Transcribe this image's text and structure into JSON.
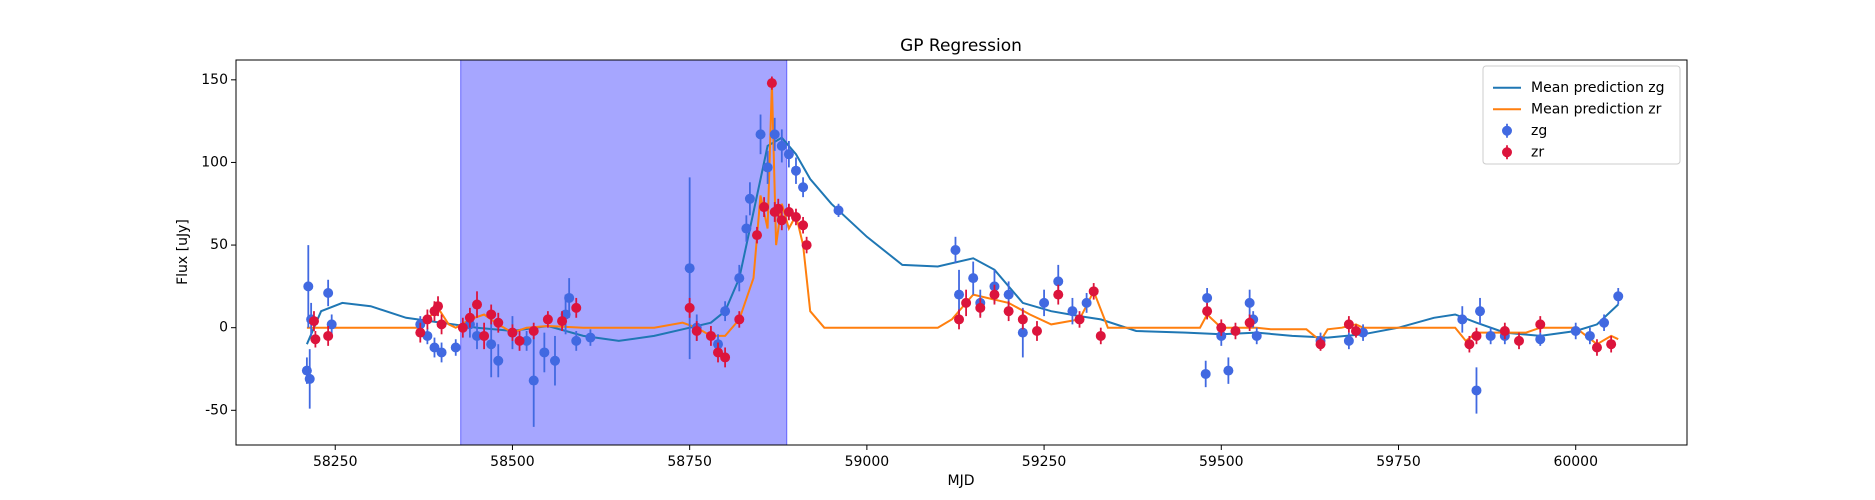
{
  "chart_data": {
    "type": "errorbar-line",
    "title": "GP Regression",
    "x_label": "MJD",
    "y_label": "Flux [uJy]",
    "xlim": [
      58110,
      60157
    ],
    "ylim": [
      -71,
      162
    ],
    "xticks": [
      58250,
      58500,
      58750,
      59000,
      59250,
      59500,
      59750,
      60000
    ],
    "yticks": [
      -50,
      0,
      50,
      100,
      150
    ],
    "grid": false,
    "legend": "upper right",
    "shaded_region": {
      "x": [
        58427,
        58887
      ],
      "color": "#0000ff"
    },
    "series": [
      {
        "name": "Mean prediction zg",
        "kind": "line",
        "color": "#1f77b4",
        "x": [
          58210,
          58230,
          58260,
          58300,
          58350,
          58400,
          58450,
          58500,
          58550,
          58600,
          58650,
          58700,
          58750,
          58780,
          58800,
          58820,
          58840,
          58860,
          58880,
          58900,
          58920,
          58950,
          59000,
          59050,
          59100,
          59150,
          59180,
          59220,
          59260,
          59300,
          59330,
          59380,
          59450,
          59500,
          59550,
          59600,
          59650,
          59700,
          59750,
          59800,
          59830,
          59860,
          59900,
          59950,
          60000,
          60030,
          60060
        ],
        "values": [
          -10,
          10,
          15,
          13,
          6,
          3,
          0,
          -2,
          1,
          -5,
          -8,
          -5,
          0,
          3,
          10,
          30,
          70,
          110,
          115,
          105,
          90,
          75,
          55,
          38,
          37,
          42,
          35,
          15,
          10,
          7,
          5,
          -2,
          -3,
          -4,
          -3,
          -5,
          -6,
          -4,
          0,
          6,
          8,
          3,
          -3,
          -5,
          -2,
          2,
          14
        ]
      },
      {
        "name": "Mean prediction zr",
        "kind": "line",
        "color": "#ff7f0e",
        "x": [
          58210,
          58230,
          58370,
          58380,
          58395,
          58410,
          58420,
          58440,
          58460,
          58480,
          58500,
          58520,
          58550,
          58600,
          58700,
          58740,
          58760,
          58780,
          58800,
          58820,
          58840,
          58850,
          58860,
          58866,
          58872,
          58880,
          58890,
          58900,
          58910,
          58920,
          58940,
          59100,
          59120,
          59150,
          59200,
          59230,
          59260,
          59300,
          59320,
          59340,
          59470,
          59480,
          59500,
          59550,
          59570,
          59620,
          59640,
          59650,
          59670,
          59690,
          59700,
          59830,
          59845,
          59860,
          59880,
          59900,
          59930,
          59950,
          60000,
          60030,
          60050,
          60060
        ],
        "values": [
          0,
          0,
          0,
          5,
          12,
          2,
          0,
          5,
          8,
          2,
          -3,
          0,
          1,
          0,
          0,
          3,
          0,
          -5,
          -5,
          5,
          30,
          80,
          60,
          148,
          50,
          75,
          60,
          68,
          50,
          10,
          0,
          0,
          5,
          20,
          15,
          8,
          2,
          5,
          22,
          0,
          0,
          8,
          0,
          0,
          -1,
          -1,
          -8,
          -1,
          0,
          2,
          0,
          0,
          -8,
          -3,
          -3,
          -3,
          -3,
          0,
          0,
          -10,
          -5,
          -7
        ]
      },
      {
        "name": "zg",
        "kind": "errorbar",
        "color": "#4169e1",
        "x": [
          58210,
          58212,
          58214,
          58216,
          58240,
          58245,
          58370,
          58380,
          58390,
          58400,
          58420,
          58440,
          58450,
          58470,
          58480,
          58500,
          58520,
          58530,
          58545,
          58560,
          58575,
          58580,
          58590,
          58610,
          58750,
          58760,
          58790,
          58800,
          58820,
          58830,
          58835,
          58850,
          58860,
          58870,
          58880,
          58890,
          58900,
          58910,
          58960,
          59125,
          59130,
          59150,
          59160,
          59180,
          59200,
          59220,
          59250,
          59270,
          59290,
          59310,
          59480,
          59478,
          59500,
          59510,
          59540,
          59545,
          59550,
          59640,
          59680,
          59700,
          59840,
          59860,
          59865,
          59880,
          59900,
          59950,
          60000,
          60020,
          60040,
          60060
        ],
        "values": [
          -26,
          25,
          -31,
          5,
          21,
          2,
          2,
          -5,
          -12,
          -15,
          -12,
          2,
          -5,
          -10,
          -20,
          -3,
          -8,
          -32,
          -15,
          -20,
          8,
          18,
          -8,
          -6,
          36,
          0,
          -10,
          10,
          30,
          60,
          78,
          117,
          97,
          117,
          110,
          105,
          95,
          85,
          71,
          47,
          20,
          30,
          15,
          25,
          20,
          -3,
          15,
          28,
          10,
          15,
          18,
          -28,
          -5,
          -26,
          15,
          5,
          -5,
          -8,
          -8,
          -3,
          5,
          -38,
          10,
          -5,
          -5,
          -7,
          -2,
          -5,
          3,
          19
        ],
        "errors": [
          8,
          25,
          18,
          10,
          8,
          6,
          5,
          5,
          6,
          6,
          5,
          8,
          8,
          20,
          10,
          10,
          6,
          28,
          12,
          15,
          12,
          12,
          6,
          5,
          55,
          8,
          6,
          6,
          8,
          8,
          10,
          12,
          10,
          10,
          10,
          8,
          8,
          6,
          4,
          8,
          15,
          10,
          8,
          10,
          8,
          15,
          8,
          10,
          8,
          6,
          6,
          8,
          6,
          8,
          8,
          5,
          5,
          5,
          5,
          5,
          8,
          14,
          8,
          5,
          5,
          4,
          5,
          5,
          5,
          5
        ]
      },
      {
        "name": "zr",
        "kind": "errorbar",
        "color": "#dc143c",
        "x": [
          58220,
          58222,
          58240,
          58370,
          58380,
          58390,
          58395,
          58400,
          58430,
          58440,
          58450,
          58460,
          58470,
          58480,
          58500,
          58510,
          58530,
          58550,
          58570,
          58590,
          58750,
          58760,
          58780,
          58790,
          58800,
          58820,
          58845,
          58855,
          58866,
          58870,
          58875,
          58880,
          58890,
          58900,
          58910,
          58915,
          59130,
          59140,
          59160,
          59180,
          59200,
          59220,
          59240,
          59270,
          59300,
          59320,
          59330,
          59480,
          59500,
          59520,
          59540,
          59640,
          59680,
          59690,
          59850,
          59860,
          59900,
          59920,
          59950,
          60030,
          60050
        ],
        "values": [
          4,
          -7,
          -5,
          -3,
          5,
          10,
          13,
          2,
          0,
          6,
          14,
          -5,
          8,
          3,
          -3,
          -8,
          -2,
          5,
          4,
          12,
          12,
          -2,
          -5,
          -15,
          -18,
          5,
          56,
          73,
          148,
          70,
          72,
          65,
          70,
          67,
          62,
          50,
          5,
          15,
          12,
          20,
          10,
          5,
          -2,
          20,
          5,
          22,
          -5,
          10,
          0,
          -2,
          3,
          -10,
          2,
          -2,
          -10,
          -5,
          -2,
          -8,
          2,
          -12,
          -10
        ],
        "errors": [
          6,
          5,
          6,
          6,
          6,
          6,
          6,
          6,
          6,
          6,
          8,
          8,
          6,
          6,
          5,
          6,
          5,
          5,
          6,
          6,
          6,
          6,
          6,
          6,
          6,
          5,
          5,
          6,
          4,
          6,
          6,
          6,
          5,
          5,
          5,
          5,
          6,
          8,
          6,
          6,
          6,
          6,
          6,
          6,
          5,
          5,
          5,
          5,
          5,
          5,
          5,
          4,
          5,
          4,
          5,
          5,
          5,
          5,
          5,
          5,
          5
        ]
      }
    ]
  }
}
